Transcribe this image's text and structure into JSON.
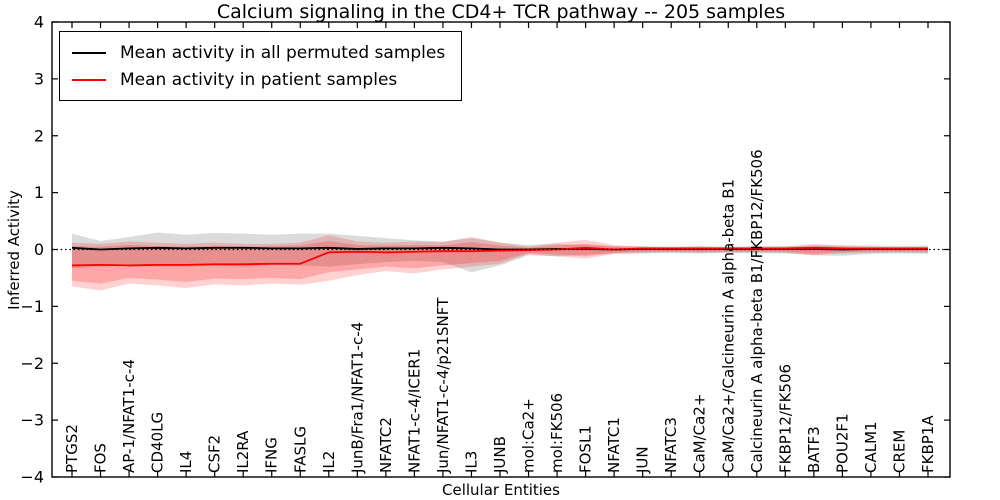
{
  "title": "Calcium signaling in the CD4+ TCR pathway -- 205 samples",
  "legend": {
    "items": [
      {
        "label": "Mean activity in all permuted samples",
        "color": "#000000"
      },
      {
        "label": "Mean activity in patient samples",
        "color": "#ff0000"
      }
    ]
  },
  "chart_data": {
    "type": "line",
    "title": "Calcium signaling in the CD4+ TCR pathway -- 205 samples",
    "xlabel": "Cellular Entities",
    "ylabel": "Inferred Activity",
    "ylim": [
      -4,
      4
    ],
    "yticks": [
      -4,
      -3,
      -2,
      -1,
      0,
      1,
      2,
      3,
      4
    ],
    "grid": false,
    "zero_line": true,
    "legend_position": "upper left",
    "categories": [
      "PTGS2",
      "FOS",
      "AP-1/NFAT1-c-4",
      "CD40LG",
      "IL4",
      "CSF2",
      "IL2RA",
      "IFNG",
      "FASLG",
      "IL2",
      "JunB/Fra1/NFAT1-c-4",
      "NFATC2",
      "NFAT1-c-4/ICER1",
      "Jun/NFAT1-c-4/p21SNFT",
      "IL3",
      "JUNB",
      "mol:Ca2+",
      "mol:FK506",
      "FOSL1",
      "NFATC1",
      "JUN",
      "NFATC3",
      "CaM/Ca2+",
      "CaM/Ca2+/Calcineurin A alpha-beta B1",
      "Calcineurin A alpha-beta B1/FKBP12/FK506",
      "FKBP12/FK506",
      "BATF3",
      "POU2F1",
      "CALM1",
      "CREM",
      "FKBP1A"
    ],
    "series": [
      {
        "name": "Mean activity in all permuted samples",
        "color": "#000000",
        "values": [
          0.03,
          0.0,
          0.02,
          0.03,
          0.02,
          0.03,
          0.03,
          0.02,
          0.02,
          0.03,
          0.01,
          0.02,
          0.02,
          0.03,
          0.02,
          0.0,
          0.0,
          0.01,
          0.01,
          0.0,
          0.01,
          0.01,
          0.01,
          0.01,
          0.01,
          0.01,
          0.01,
          0.0,
          0.01,
          0.01,
          0.01
        ]
      },
      {
        "name": "Mean activity in patient samples",
        "color": "#ff0000",
        "values": [
          -0.28,
          -0.27,
          -0.28,
          -0.27,
          -0.27,
          -0.26,
          -0.26,
          -0.25,
          -0.25,
          -0.05,
          -0.04,
          -0.05,
          -0.04,
          -0.03,
          -0.03,
          -0.02,
          -0.01,
          0.0,
          0.03,
          0.0,
          0.02,
          0.02,
          0.02,
          0.02,
          0.02,
          0.02,
          0.03,
          0.02,
          0.02,
          0.02,
          0.02
        ]
      }
    ],
    "bands": [
      {
        "name": "permuted-range",
        "color": "#000000",
        "opacity": 0.14,
        "upper": [
          0.28,
          0.15,
          0.22,
          0.3,
          0.26,
          0.29,
          0.28,
          0.26,
          0.28,
          0.28,
          0.24,
          0.2,
          0.16,
          0.14,
          0.2,
          0.12,
          0.08,
          0.1,
          0.08,
          0.06,
          0.06,
          0.05,
          0.06,
          0.05,
          0.06,
          0.06,
          0.07,
          0.08,
          0.07,
          0.06,
          0.07
        ],
        "lower": [
          -0.33,
          -0.3,
          -0.29,
          -0.3,
          -0.3,
          -0.29,
          -0.3,
          -0.28,
          -0.28,
          -0.3,
          -0.26,
          -0.22,
          -0.2,
          -0.22,
          -0.4,
          -0.28,
          -0.1,
          -0.12,
          -0.09,
          -0.07,
          -0.07,
          -0.06,
          -0.07,
          -0.06,
          -0.07,
          -0.07,
          -0.1,
          -0.11,
          -0.08,
          -0.07,
          -0.08
        ]
      },
      {
        "name": "patient-range-outer",
        "color": "#ff0000",
        "opacity": 0.18,
        "upper": [
          0.12,
          0.1,
          0.14,
          0.12,
          0.1,
          0.12,
          0.1,
          0.1,
          0.12,
          0.25,
          0.14,
          0.12,
          0.14,
          0.13,
          0.22,
          0.12,
          0.05,
          0.12,
          0.17,
          0.08,
          0.05,
          0.04,
          0.05,
          0.04,
          0.04,
          0.05,
          0.1,
          0.06,
          0.05,
          0.04,
          0.05
        ],
        "lower": [
          -0.65,
          -0.72,
          -0.6,
          -0.63,
          -0.68,
          -0.61,
          -0.63,
          -0.6,
          -0.62,
          -0.55,
          -0.45,
          -0.38,
          -0.42,
          -0.35,
          -0.3,
          -0.25,
          -0.08,
          -0.12,
          -0.16,
          -0.08,
          -0.06,
          -0.05,
          -0.06,
          -0.05,
          -0.05,
          -0.06,
          -0.1,
          -0.07,
          -0.06,
          -0.05,
          -0.06
        ]
      },
      {
        "name": "patient-range-inner",
        "color": "#ff0000",
        "opacity": 0.2,
        "upper": [
          0.06,
          0.05,
          0.08,
          0.06,
          0.05,
          0.06,
          0.05,
          0.06,
          0.07,
          0.15,
          0.08,
          0.07,
          0.08,
          0.07,
          0.13,
          0.07,
          0.03,
          0.07,
          0.1,
          0.05,
          0.03,
          0.03,
          0.03,
          0.03,
          0.03,
          0.03,
          0.06,
          0.04,
          0.03,
          0.03,
          0.03
        ],
        "lower": [
          -0.55,
          -0.6,
          -0.5,
          -0.53,
          -0.57,
          -0.51,
          -0.52,
          -0.5,
          -0.52,
          -0.4,
          -0.35,
          -0.3,
          -0.33,
          -0.28,
          -0.24,
          -0.2,
          -0.06,
          -0.09,
          -0.12,
          -0.06,
          -0.04,
          -0.04,
          -0.04,
          -0.04,
          -0.04,
          -0.04,
          -0.07,
          -0.05,
          -0.04,
          -0.04,
          -0.04
        ]
      }
    ]
  }
}
